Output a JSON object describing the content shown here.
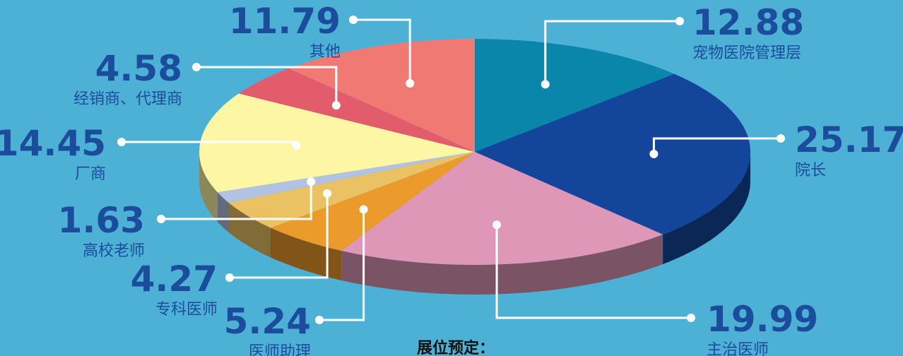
{
  "chart_data": {
    "type": "pie",
    "categories": [
      "宠物医院管理层",
      "院长",
      "主治医师",
      "医师助理",
      "专科医师",
      "高校老师",
      "厂商",
      "经销商、代理商",
      "其他"
    ],
    "values": [
      12.88,
      25.17,
      19.99,
      5.24,
      4.27,
      1.63,
      14.45,
      4.58,
      11.79
    ],
    "colors": [
      "#0b86ab",
      "#13469b",
      "#de97b7",
      "#ea9b2c",
      "#ebc263",
      "#b2c2e2",
      "#fdf6a4",
      "#e35c6b",
      "#f17973"
    ]
  },
  "footer": "展位预定："
}
